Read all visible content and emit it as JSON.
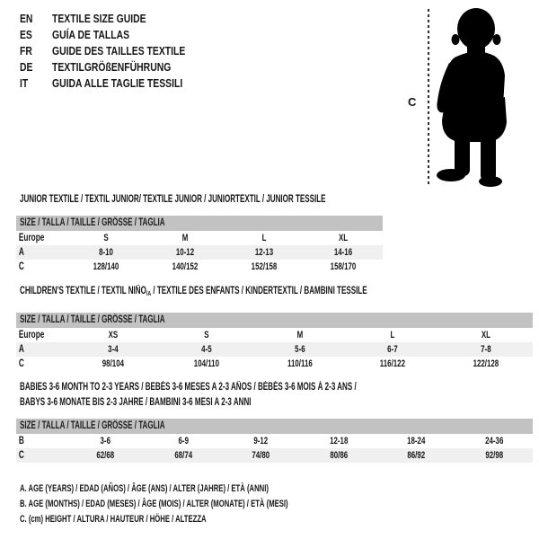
{
  "header": {
    "languages": [
      {
        "code": "EN",
        "title": "TEXTILE SIZE GUIDE"
      },
      {
        "code": "ES",
        "title": "GUÍA DE TALLAS"
      },
      {
        "code": "FR",
        "title": "GUIDE DES TAILLES TEXTILE"
      },
      {
        "code": "DE",
        "title": "TEXTILGRÖßENFÜHRUNG"
      },
      {
        "code": "IT",
        "title": "GUIDA ALLE TAGLIE TESSILI"
      }
    ],
    "figure": {
      "measure_label": "C",
      "icon": "baby-silhouette"
    }
  },
  "tables": {
    "junior": {
      "title": "JUNIOR TEXTILE / TEXTIL JUNIOR/ TEXTILE JUNIOR / JUNIORTEXTIL / JUNIOR TESSILE",
      "size_header": "SIZE / TALLA / TAILLE / GRÖSSE / TAGLIA",
      "rows": [
        {
          "label": "Europe",
          "values": [
            "S",
            "M",
            "L",
            "XL"
          ],
          "shaded": false
        },
        {
          "label": "A",
          "values": [
            "8-10",
            "10-12",
            "12-13",
            "14-16"
          ],
          "shaded": true
        },
        {
          "label": "C",
          "values": [
            "128/140",
            "140/152",
            "152/158",
            "158/170"
          ],
          "shaded": false
        }
      ]
    },
    "children": {
      "title_before": "CHILDREN'S TEXTILE / TEXTIL NIÑO",
      "title_sub": "/A",
      "title_after": " / TEXTILE DES ENFANTS / KINDERTEXTIL / BAMBINI TESSILE",
      "size_header": "SIZE / TALLA / TAILLE / GRÖSSE / TAGLIA",
      "rows": [
        {
          "label": "Europe",
          "values": [
            "XS",
            "S",
            "M",
            "L",
            "XL"
          ],
          "shaded": false
        },
        {
          "label": "A",
          "values": [
            "3-4",
            "4-5",
            "5-6",
            "6-7",
            "7-8"
          ],
          "shaded": true
        },
        {
          "label": "C",
          "values": [
            "98/104",
            "104/110",
            "110/116",
            "116/122",
            "122/128"
          ],
          "shaded": false
        }
      ]
    },
    "babies": {
      "title_line1": "BABIES 3-6 MONTH TO 2-3 YEARS / BEBÉS 3-6 MESES A 2-3 AÑOS / BÉBÉS 3-6 MOIS À 2-3 ANS /",
      "title_line2": "BABYS 3-6 MONATE BIS 2-3 JAHRE / BAMBINI 3-6 MESI A 2-3 ANNI",
      "size_header": "SIZE / TALLA / TAILLE / GRÖSSE / TAGLIA",
      "rows": [
        {
          "label": "B",
          "values": [
            "3-6",
            "6-9",
            "9-12",
            "12-18",
            "18-24",
            "24-36"
          ],
          "shaded": false
        },
        {
          "label": "C",
          "values": [
            "62/68",
            "68/74",
            "74/80",
            "80/86",
            "86/92",
            "92/98"
          ],
          "shaded": true
        }
      ]
    }
  },
  "footnotes": [
    "A. AGE (YEARS) / EDAD (AÑOS) / ÂGE (ANS) / ALTER (JAHRE) / ETÀ (ANNI)",
    "B. AGE (MONTHS) / EDAD (MESES) / ÂGE (MOIS) / ALTER (MONATE) / ETÀ (MESI)",
    "C. (cm) HEIGHT / ALTURA / HAUTEUR / HÖHE / ALTEZZA"
  ],
  "colors": {
    "size_bar_gray": "#c2c2c2",
    "row_stripe_gray": "#f0f0f0",
    "text": "#161616",
    "silhouette_black": "#000000"
  }
}
